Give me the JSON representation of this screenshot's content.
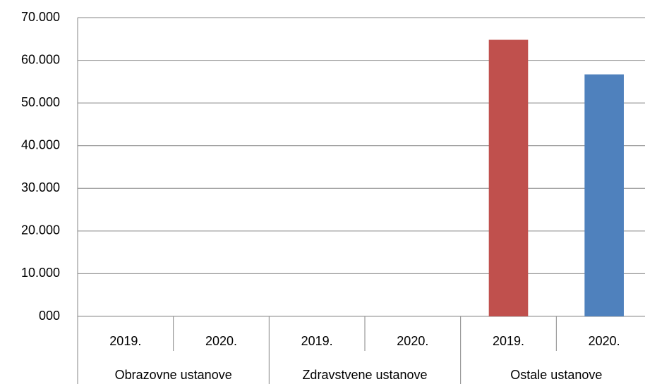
{
  "chart_data": {
    "type": "bar",
    "categories": [
      "2019.",
      "2020.",
      "2019.",
      "2020.",
      "2019.",
      "2020."
    ],
    "groups": [
      "Obrazovne ustanove",
      "Zdravstvene ustanove",
      "Ostale ustanove"
    ],
    "values": [
      0,
      0,
      0,
      0,
      64800,
      56700
    ],
    "colors": [
      "#c0504d",
      "#4f81bd",
      "#c0504d",
      "#4f81bd",
      "#c0504d",
      "#4f81bd"
    ],
    "ylim": [
      0,
      70000
    ],
    "yticks": [
      {
        "value": 0,
        "label": "000"
      },
      {
        "value": 10000,
        "label": "10.000"
      },
      {
        "value": 20000,
        "label": "20.000"
      },
      {
        "value": 30000,
        "label": "30.000"
      },
      {
        "value": 40000,
        "label": "40.000"
      },
      {
        "value": 50000,
        "label": "50.000"
      },
      {
        "value": 60000,
        "label": "60.000"
      },
      {
        "value": 70000,
        "label": "70.000"
      }
    ],
    "grid": true
  }
}
